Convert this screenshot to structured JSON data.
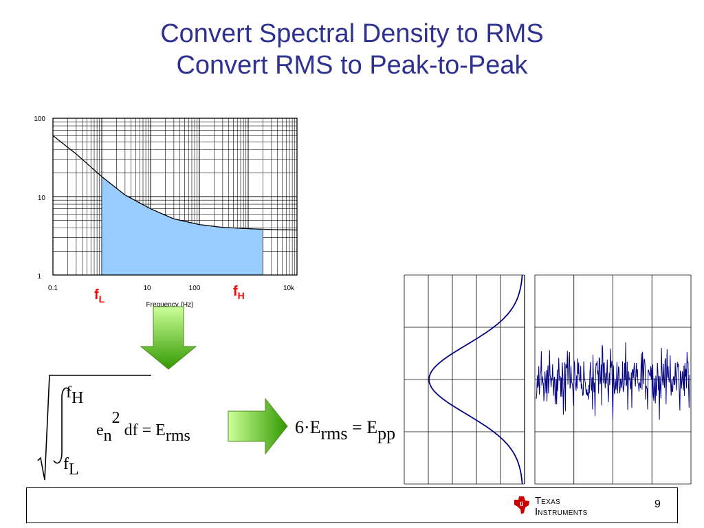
{
  "slide": {
    "title_line1": "Convert Spectral Density to RMS",
    "title_line2": "Convert RMS to Peak-to-Peak",
    "page_number": "9"
  },
  "chart_data": [
    {
      "type": "line",
      "x_scale": "log",
      "y_scale": "log",
      "x_tick_labels": [
        "0.1",
        "10",
        "100",
        "10k"
      ],
      "y_tick_labels": [
        "100",
        "10",
        "1"
      ],
      "xlabel": "Frequency (Hz)",
      "xlim": [
        0.1,
        10000
      ],
      "ylim": [
        1,
        100
      ],
      "grid": true,
      "series": [
        {
          "x": [
            0.1,
            0.3,
            1,
            3,
            10,
            30,
            100,
            300,
            1000,
            3000,
            10000
          ],
          "y": [
            60,
            35,
            18,
            10.5,
            7,
            5.2,
            4.4,
            4.05,
            3.9,
            3.8,
            3.75
          ]
        }
      ],
      "shaded_band": {
        "x_from": 1,
        "x_to": 2000,
        "color": "#99ccff"
      },
      "band_labels": {
        "f_low": {
          "main": "f",
          "sub": "L"
        },
        "f_high": {
          "main": "f",
          "sub": "H"
        }
      },
      "label_color": "#ff0000"
    },
    {
      "type": "line",
      "description_shape": "gaussian",
      "series": [
        {
          "mean": 0,
          "std": 1
        }
      ],
      "grid": true,
      "line_color": "#000080"
    },
    {
      "type": "line",
      "description_shape": "noise",
      "grid": true,
      "line_color": "#000080"
    }
  ],
  "equations": {
    "integral_upper": {
      "main": "f",
      "sub": "H"
    },
    "integral_lower": {
      "main": "f",
      "sub": "L"
    },
    "integrand_base": "e",
    "integrand_sub": "n",
    "integrand_exp": "2",
    "df_text": "df = E",
    "erms_sub": "rms",
    "pp_prefix": "6·E",
    "pp_mid": " = E",
    "pp_sub": "pp"
  },
  "logo": {
    "line1_first": "T",
    "line1_rest": "EXAS",
    "line2_first": "I",
    "line2_rest": "NSTRUMENTS"
  },
  "colors": {
    "title": "#2e3192",
    "arrow_green_dark": "#339900",
    "arrow_green_light": "#ccff99",
    "curve": "#000080",
    "fill": "#99ccff",
    "flabel": "#ff0000"
  }
}
